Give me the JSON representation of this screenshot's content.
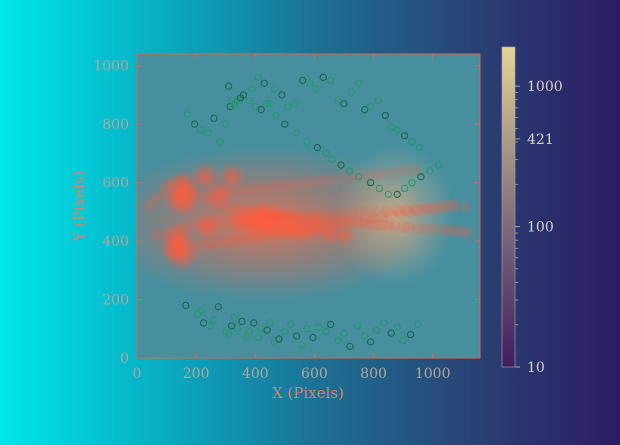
{
  "chart_data": {
    "type": "scatter",
    "title": "",
    "xlabel": "X (Pixels)",
    "ylabel": "Y (Pixels)",
    "xlim": [
      0,
      1160
    ],
    "ylim": [
      0,
      1040
    ],
    "grid": false,
    "x_ticks": [
      "0",
      "200",
      "400",
      "600",
      "800",
      "1000"
    ],
    "y_ticks": [
      "0",
      "200",
      "400",
      "600",
      "800",
      "1000"
    ],
    "colorbar": {
      "scale": "log",
      "range": [
        10,
        1900
      ],
      "ticks": [
        "10",
        "100",
        "421",
        "1000"
      ],
      "colors": [
        "#3e1e5e",
        "#6f5a78",
        "#a99a86",
        "#e3d596"
      ]
    },
    "colors": {
      "circle": "#1f9a6a",
      "circle_dark": "#146244",
      "hot": "#ff5a3c",
      "image_base": "#478f9f",
      "axis": "#d56b4f"
    },
    "series": [
      {
        "x": [
          40,
          60,
          80,
          95,
          120,
          150,
          180,
          200,
          230,
          250,
          270,
          300,
          330,
          360,
          390,
          420,
          450,
          470,
          500,
          520,
          550,
          570,
          600,
          620,
          640,
          660,
          680,
          700,
          720,
          750,
          770,
          790,
          810,
          830,
          850,
          870,
          900,
          920,
          950,
          980,
          1010,
          1040,
          1060,
          1080,
          1100,
          1120,
          70,
          110,
          140,
          170,
          210,
          240,
          280,
          310,
          340,
          370,
          400,
          430,
          460,
          490,
          520,
          540,
          580,
          610,
          650,
          690,
          730,
          760,
          800,
          840,
          880,
          910,
          940,
          970,
          1000,
          1030,
          1070,
          1110,
          200,
          230,
          260,
          290,
          320,
          350,
          380,
          410,
          440,
          470,
          500,
          530,
          560,
          590,
          620,
          650,
          680,
          710,
          740,
          770,
          800,
          830,
          860,
          890,
          920,
          950,
          980,
          1010,
          1040,
          1070,
          260,
          300,
          340,
          380,
          420,
          460,
          500,
          540,
          580,
          620,
          660,
          700,
          740,
          780,
          820,
          860,
          900,
          940
        ],
        "y": [
          520,
          540,
          560,
          590,
          600,
          610,
          570,
          560,
          550,
          540,
          530,
          520,
          510,
          505,
          500,
          495,
          490,
          488,
          485,
          482,
          480,
          478,
          476,
          474,
          472,
          470,
          468,
          466,
          464,
          462,
          460,
          458,
          456,
          454,
          452,
          450,
          448,
          446,
          444,
          442,
          440,
          438,
          436,
          434,
          432,
          430,
          420,
          430,
          440,
          450,
          455,
          460,
          465,
          470,
          472,
          474,
          476,
          478,
          480,
          482,
          484,
          486,
          488,
          490,
          492,
          494,
          496,
          498,
          500,
          502,
          504,
          506,
          508,
          510,
          512,
          514,
          516,
          518,
          380,
          385,
          390,
          395,
          400,
          405,
          410,
          415,
          420,
          425,
          430,
          435,
          440,
          445,
          450,
          455,
          460,
          465,
          470,
          475,
          480,
          485,
          490,
          495,
          500,
          505,
          510,
          515,
          520,
          525,
          560,
          565,
          570,
          575,
          580,
          585,
          590,
          595,
          600,
          605,
          610,
          615,
          620,
          625,
          630,
          635,
          640,
          645
        ]
      }
    ],
    "circles": {
      "x": [
        165,
        205,
        215,
        225,
        245,
        260,
        275,
        300,
        310,
        320,
        330,
        340,
        355,
        370,
        380,
        395,
        410,
        420,
        440,
        450,
        465,
        480,
        500,
        520,
        540,
        560,
        575,
        595,
        615,
        640,
        655,
        680,
        700,
        720,
        745,
        770,
        790,
        810,
        835,
        860,
        880,
        900,
        925,
        950,
        170,
        195,
        215,
        240,
        260,
        280,
        300,
        315,
        330,
        345,
        360,
        380,
        400,
        420,
        440,
        465,
        490,
        510,
        535,
        560,
        585,
        605,
        630,
        655,
        680,
        700,
        725,
        750,
        770,
        790,
        815,
        840,
        860,
        880,
        905,
        930,
        955,
        310,
        320,
        330,
        350,
        390,
        410,
        430,
        450,
        470,
        500,
        540,
        575,
        610,
        640,
        660,
        690,
        720,
        750,
        790,
        820,
        850,
        880,
        905,
        930,
        960,
        990,
        1020
      ],
      "y": [
        180,
        150,
        160,
        120,
        110,
        130,
        175,
        90,
        80,
        110,
        140,
        100,
        125,
        70,
        90,
        120,
        70,
        100,
        95,
        120,
        55,
        65,
        90,
        115,
        75,
        45,
        100,
        70,
        105,
        90,
        115,
        60,
        85,
        40,
        110,
        75,
        55,
        95,
        120,
        85,
        105,
        60,
        80,
        115,
        835,
        800,
        780,
        770,
        820,
        740,
        800,
        860,
        870,
        880,
        900,
        880,
        860,
        850,
        870,
        920,
        900,
        860,
        870,
        950,
        940,
        920,
        960,
        950,
        880,
        870,
        910,
        940,
        850,
        860,
        880,
        830,
        790,
        780,
        760,
        740,
        720,
        930,
        880,
        860,
        890,
        920,
        960,
        940,
        870,
        830,
        800,
        770,
        740,
        720,
        700,
        680,
        660,
        640,
        620,
        600,
        580,
        560,
        560,
        580,
        600,
        620,
        640,
        660
      ]
    },
    "hotspots": {
      "x": [
        140,
        150,
        160,
        130,
        230,
        320,
        360,
        410,
        450,
        480,
        520,
        560,
        600,
        650,
        700,
        280,
        240,
        420,
        140,
        160
      ],
      "y": [
        560,
        360,
        540,
        380,
        620,
        620,
        470,
        460,
        470,
        460,
        450,
        440,
        450,
        430,
        420,
        560,
        450,
        480,
        410,
        590
      ],
      "strength": [
        1.0,
        1.0,
        0.9,
        0.9,
        0.7,
        0.6,
        0.8,
        0.9,
        1.0,
        0.9,
        0.8,
        0.7,
        0.6,
        0.5,
        0.4,
        0.6,
        0.6,
        0.8,
        0.7,
        0.7
      ]
    }
  }
}
